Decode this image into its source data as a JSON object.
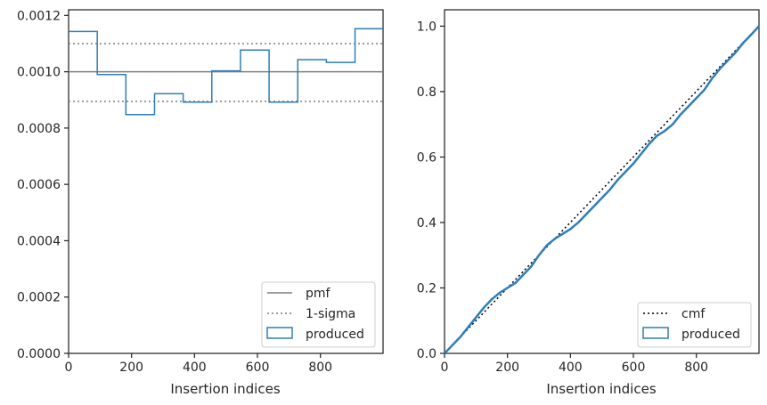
{
  "chart_data": [
    {
      "type": "line",
      "xlabel": "Insertion indices",
      "ylabel": "",
      "xlim": [
        0,
        999
      ],
      "ylim": [
        0,
        0.00122
      ],
      "xticks": [
        0,
        200,
        400,
        600,
        800
      ],
      "xtick_labels": [
        "0",
        "200",
        "400",
        "600",
        "800"
      ],
      "yticks": [
        0,
        0.0002,
        0.0004,
        0.0006,
        0.0008,
        0.001,
        0.0012
      ],
      "ytick_labels": [
        "0.0000",
        "0.0002",
        "0.0004",
        "0.0006",
        "0.0008",
        "0.0010",
        "0.0012"
      ],
      "grid": false,
      "legend_position": "lower-right",
      "pmf": 0.001,
      "sigma_lines": [
        0.0011,
        0.000895
      ],
      "produced": {
        "bin_edges": [
          0,
          91,
          182,
          273,
          364,
          455,
          546,
          637,
          728,
          819,
          910,
          999
        ],
        "values": [
          0.001143,
          0.00099,
          0.000848,
          0.000922,
          0.000892,
          0.001003,
          0.001077,
          0.000892,
          0.001043,
          0.001033,
          0.001153
        ]
      },
      "legend": [
        {
          "label": "pmf",
          "style": "solid-gray"
        },
        {
          "label": "1-sigma",
          "style": "dotted-gray"
        },
        {
          "label": "produced",
          "style": "blue-box"
        }
      ],
      "colors": {
        "produced": "#2e7eb8",
        "reference": "#7f7f7f"
      }
    },
    {
      "type": "line",
      "xlabel": "Insertion indices",
      "ylabel": "",
      "xlim": [
        0,
        999
      ],
      "ylim": [
        0,
        1.05
      ],
      "xticks": [
        0,
        200,
        400,
        600,
        800
      ],
      "xtick_labels": [
        "0",
        "200",
        "400",
        "600",
        "800"
      ],
      "yticks": [
        0,
        0.2,
        0.4,
        0.6,
        0.8,
        1.0
      ],
      "ytick_labels": [
        "0.0",
        "0.2",
        "0.4",
        "0.6",
        "0.8",
        "1.0"
      ],
      "grid": false,
      "legend_position": "lower-right",
      "cmf": {
        "x": [
          0,
          999
        ],
        "y": [
          0,
          1.0
        ]
      },
      "produced": {
        "x": [
          0,
          25,
          50,
          75,
          100,
          125,
          150,
          175,
          200,
          225,
          250,
          275,
          300,
          325,
          350,
          375,
          400,
          425,
          450,
          475,
          500,
          525,
          550,
          575,
          600,
          625,
          650,
          675,
          700,
          725,
          750,
          775,
          800,
          825,
          850,
          875,
          900,
          925,
          950,
          975,
          999
        ],
        "y": [
          0,
          0.025,
          0.05,
          0.08,
          0.11,
          0.14,
          0.165,
          0.185,
          0.2,
          0.215,
          0.24,
          0.265,
          0.3,
          0.33,
          0.35,
          0.365,
          0.38,
          0.4,
          0.425,
          0.45,
          0.475,
          0.5,
          0.53,
          0.555,
          0.58,
          0.61,
          0.64,
          0.665,
          0.68,
          0.7,
          0.73,
          0.755,
          0.78,
          0.805,
          0.84,
          0.87,
          0.895,
          0.92,
          0.95,
          0.975,
          1.0
        ]
      },
      "legend": [
        {
          "label": "cmf",
          "style": "dotted-black"
        },
        {
          "label": "produced",
          "style": "blue-box"
        }
      ],
      "colors": {
        "produced": "#2e7eb8",
        "reference": "#000000"
      }
    }
  ]
}
